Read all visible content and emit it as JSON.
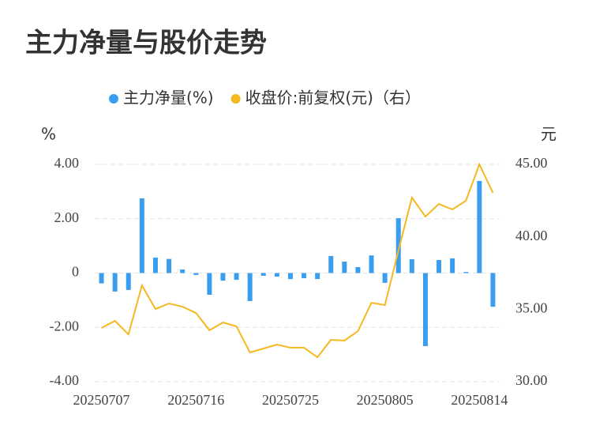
{
  "chart_data": {
    "type": "bar-line",
    "title": "主力净量与股价走势",
    "y_label": "%",
    "y2_label": "元",
    "categories": [
      "20250707",
      null,
      null,
      null,
      null,
      null,
      null,
      "20250716",
      null,
      null,
      null,
      null,
      null,
      null,
      "20250725",
      null,
      null,
      null,
      null,
      null,
      null,
      "20250805",
      null,
      null,
      null,
      null,
      null,
      null,
      "20250814",
      null
    ],
    "series": [
      {
        "name": "主力净量(%)",
        "color": "#3a9ef0",
        "kind": "bar",
        "values": [
          -0.38,
          -0.68,
          -0.62,
          2.75,
          0.57,
          0.52,
          0.13,
          -0.07,
          -0.8,
          -0.28,
          -0.25,
          -1.03,
          -0.1,
          -0.13,
          -0.22,
          -0.19,
          -0.22,
          0.63,
          0.42,
          0.22,
          0.65,
          -0.36,
          2.02,
          0.51,
          -2.69,
          0.48,
          0.54,
          0.04,
          3.39,
          -1.24
        ]
      },
      {
        "name": "收盘价:前复权(元)（右）",
        "color": "#f5b820",
        "kind": "line",
        "axis": "y2",
        "values": [
          33.71,
          34.2,
          33.27,
          36.65,
          35.02,
          35.4,
          35.18,
          34.75,
          33.55,
          34.09,
          33.82,
          32.02,
          32.29,
          32.56,
          32.35,
          32.35,
          31.69,
          32.89,
          32.84,
          33.49,
          35.45,
          35.29,
          39.05,
          42.71,
          41.4,
          42.27,
          41.89,
          42.49,
          45.0,
          43.04
        ]
      }
    ],
    "ylim": [
      -4,
      4
    ],
    "yticks": [
      {
        "value": 4,
        "label": "4.00"
      },
      {
        "value": 2,
        "label": "2.00"
      },
      0,
      {
        "value": -2,
        "label": "-2.00"
      },
      {
        "value": -4,
        "label": "-4.00"
      }
    ],
    "y2lim": [
      30,
      45
    ],
    "y2ticks": [
      {
        "value": 45,
        "label": "45.00"
      },
      {
        "value": 40,
        "label": "40.00"
      },
      {
        "value": 35,
        "label": "35.00"
      },
      {
        "value": 30,
        "label": "30.00"
      }
    ],
    "grid": true
  }
}
